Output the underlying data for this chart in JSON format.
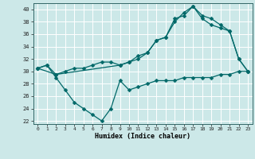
{
  "xlabel": "Humidex (Indice chaleur)",
  "xlim": [
    -0.5,
    23.5
  ],
  "ylim": [
    21.5,
    41.0
  ],
  "yticks": [
    22,
    24,
    26,
    28,
    30,
    32,
    34,
    36,
    38,
    40
  ],
  "xticks": [
    0,
    1,
    2,
    3,
    4,
    5,
    6,
    7,
    8,
    9,
    10,
    11,
    12,
    13,
    14,
    15,
    16,
    17,
    18,
    19,
    20,
    21,
    22,
    23
  ],
  "bg_color": "#cce8e8",
  "grid_color": "#ffffff",
  "line_color": "#006868",
  "line1_x": [
    0,
    1,
    2,
    3,
    4,
    5,
    6,
    7,
    8,
    9,
    10,
    11,
    12,
    13,
    14,
    15,
    16,
    17,
    18,
    19,
    20,
    21,
    22,
    23
  ],
  "line1_y": [
    30.5,
    31.0,
    29.0,
    27.0,
    25.0,
    24.0,
    23.0,
    22.0,
    24.0,
    28.5,
    27.0,
    27.5,
    28.0,
    28.5,
    28.5,
    28.5,
    29.0,
    29.0,
    29.0,
    29.0,
    29.5,
    29.5,
    30.0,
    30.0
  ],
  "line2_x": [
    0,
    1,
    2,
    3,
    4,
    5,
    6,
    7,
    8,
    9,
    10,
    11,
    12,
    13,
    14,
    15,
    16,
    17,
    18,
    19,
    20,
    21,
    22,
    23
  ],
  "line2_y": [
    30.5,
    31.0,
    29.5,
    30.0,
    30.5,
    30.5,
    31.0,
    31.5,
    31.5,
    31.0,
    31.5,
    32.5,
    33.0,
    35.0,
    35.5,
    38.0,
    39.5,
    40.5,
    38.5,
    37.5,
    37.0,
    36.5,
    32.0,
    30.0
  ],
  "line3_x": [
    0,
    2,
    9,
    10,
    11,
    12,
    13,
    14,
    15,
    16,
    17,
    18,
    19,
    20,
    21,
    22,
    23
  ],
  "line3_y": [
    30.5,
    29.5,
    31.0,
    31.5,
    32.0,
    33.0,
    35.0,
    35.5,
    38.5,
    39.0,
    40.5,
    39.0,
    38.5,
    37.5,
    36.5,
    32.0,
    30.0
  ]
}
